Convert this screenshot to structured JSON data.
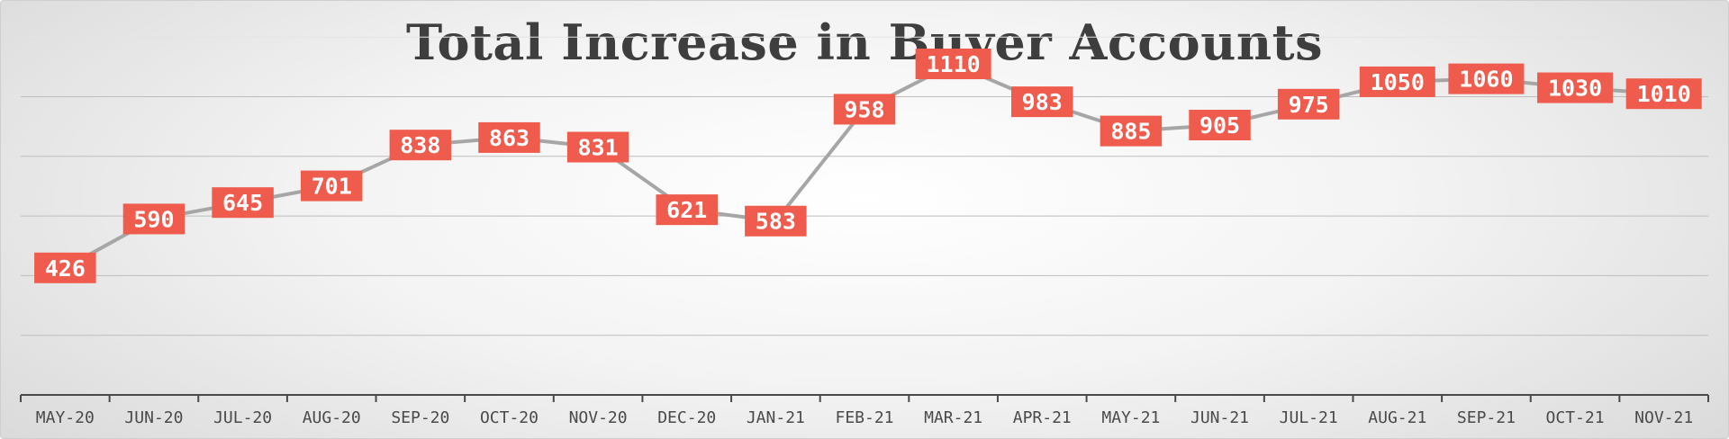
{
  "chart_data": {
    "type": "line",
    "title": "Total Increase in Buyer Accounts",
    "xlabel": "",
    "ylabel": "",
    "categories": [
      "MAY-20",
      "JUN-20",
      "JUL-20",
      "AUG-20",
      "SEP-20",
      "OCT-20",
      "NOV-20",
      "DEC-20",
      "JAN-21",
      "FEB-21",
      "MAR-21",
      "APR-21",
      "MAY-21",
      "JUN-21",
      "JUL-21",
      "AUG-21",
      "SEP-21",
      "OCT-21",
      "NOV-21"
    ],
    "series": [
      {
        "values": [
          426,
          590,
          645,
          701,
          838,
          863,
          831,
          621,
          583,
          958,
          1110,
          983,
          885,
          905,
          975,
          1050,
          1060,
          1030,
          1010
        ]
      }
    ],
    "ylim": [
      0,
      1200
    ],
    "grid": true,
    "legend": "none",
    "colors": {
      "line": "#a6a6a6",
      "label_bg": "#ef5b4c",
      "label_text": "#ffffff",
      "title": "#3e3e3e",
      "axis": "#4a4a4a"
    }
  }
}
